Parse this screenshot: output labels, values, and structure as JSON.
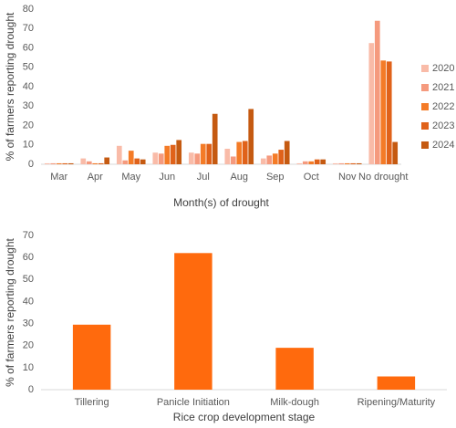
{
  "chart_data": [
    {
      "type": "bar",
      "y_label": "% of farmers reporting drought",
      "x_label": "Month(s) of drought",
      "categories": [
        "Mar",
        "Apr",
        "May",
        "Jun",
        "Jul",
        "Aug",
        "Sep",
        "Oct",
        "Nov",
        "No drought"
      ],
      "series": [
        {
          "name": "2020",
          "color": "#f9bba8",
          "values": [
            0.5,
            3,
            9.5,
            6,
            6,
            8,
            3,
            0.5,
            0.5,
            62.5
          ]
        },
        {
          "name": "2021",
          "color": "#f59a7e",
          "values": [
            0.5,
            1.5,
            2,
            5.5,
            5.5,
            4,
            4.5,
            1.5,
            0.5,
            74
          ]
        },
        {
          "name": "2022",
          "color": "#f47b27",
          "values": [
            0.5,
            0.5,
            7,
            9.5,
            10.5,
            11.5,
            5.5,
            1.5,
            0.5,
            53.5
          ]
        },
        {
          "name": "2023",
          "color": "#e0621a",
          "values": [
            0.5,
            0.5,
            3,
            10,
            10.5,
            12,
            7.5,
            2.5,
            0.5,
            53
          ]
        },
        {
          "name": "2024",
          "color": "#c55a11",
          "values": [
            0.5,
            3.5,
            2.5,
            12.5,
            26,
            28.5,
            12,
            2.5,
            0.5,
            11.5
          ]
        }
      ],
      "ylim": [
        0,
        80
      ],
      "yticks": [
        0,
        10,
        20,
        30,
        40,
        50,
        60,
        70,
        80
      ],
      "legend": "right"
    },
    {
      "type": "bar",
      "y_label": "% of farmers reporting drought",
      "x_label": "Rice crop development stage",
      "categories": [
        "Tillering",
        "Panicle Initiation",
        "Milk-dough",
        "Ripening/Maturity"
      ],
      "values": [
        29.5,
        62,
        19,
        6
      ],
      "color": "#ff6a0d",
      "ylim": [
        0,
        70
      ],
      "yticks": [
        0,
        10,
        20,
        30,
        40,
        50,
        60,
        70
      ]
    }
  ]
}
